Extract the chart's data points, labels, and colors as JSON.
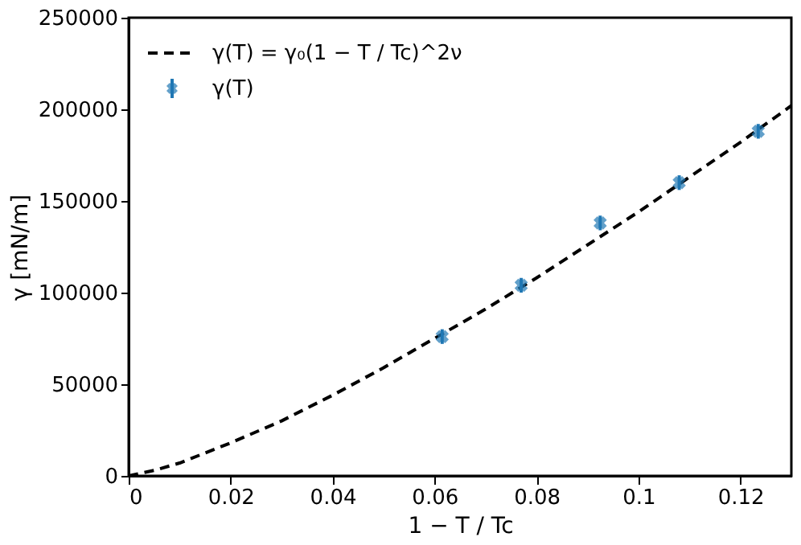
{
  "chart_data": {
    "type": "line",
    "xlabel": "1 − T / Tc",
    "ylabel": "γ [mN/m]",
    "xlim": [
      0,
      0.13
    ],
    "xticks": [
      0,
      0.02,
      0.04,
      0.06,
      0.08,
      0.1,
      0.12
    ],
    "ylim": [
      0,
      250000
    ],
    "yticks": [
      0,
      50000,
      100000,
      150000,
      200000,
      250000
    ],
    "grid": false,
    "legend": "top left",
    "series": [
      {
        "name": "γ(T) = γ₀(1 − T / Tc)^2ν",
        "color": "#000000",
        "line_style": "dashed",
        "marker": "none",
        "x": [
          0,
          0.005,
          0.01,
          0.02,
          0.03,
          0.04,
          0.05,
          0.06,
          0.07,
          0.08,
          0.09,
          0.1,
          0.11,
          0.12,
          0.13
        ],
        "values": [
          0,
          3000,
          7000,
          18000,
          30000,
          44000,
          59000,
          75000,
          91000,
          108000,
          126000,
          144000,
          163000,
          182000,
          202000
        ]
      },
      {
        "name": "γ(T)",
        "type": "scatter",
        "color": "#1f77b4",
        "marker": "cross",
        "x": [
          0.0615,
          0.077,
          0.0925,
          0.108,
          0.1235
        ],
        "values": [
          76000,
          104000,
          138000,
          160000,
          188000
        ],
        "errors": [
          4000,
          4000,
          4000,
          4000,
          4000
        ]
      }
    ]
  }
}
